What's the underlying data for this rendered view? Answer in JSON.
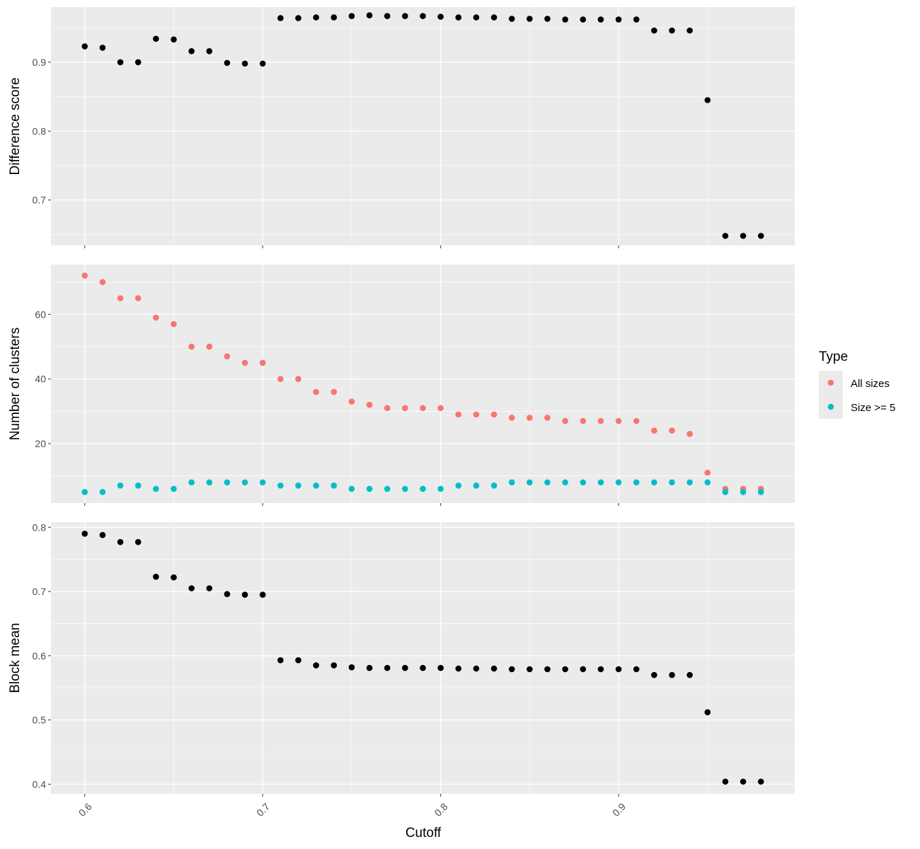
{
  "chart_data": {
    "type": "scatter",
    "x_axis": {
      "label": "Cutoff",
      "range": [
        0.581,
        0.999
      ],
      "ticks": [
        0.6,
        0.7,
        0.8,
        0.9
      ],
      "tick_labels": [
        "0.6",
        "0.7",
        "0.8",
        "0.9"
      ]
    },
    "x": [
      0.6,
      0.61,
      0.62,
      0.63,
      0.64,
      0.65,
      0.66,
      0.67,
      0.68,
      0.69,
      0.7,
      0.71,
      0.72,
      0.73,
      0.74,
      0.75,
      0.76,
      0.77,
      0.78,
      0.79,
      0.8,
      0.81,
      0.82,
      0.83,
      0.84,
      0.85,
      0.86,
      0.87,
      0.88,
      0.89,
      0.9,
      0.91,
      0.92,
      0.93,
      0.94,
      0.95,
      0.96,
      0.97,
      0.98
    ],
    "grid": true,
    "panels": [
      {
        "id": "difference-score",
        "ylabel": "Difference score",
        "ylim": [
          0.634,
          0.98
        ],
        "y_ticks": [
          0.7,
          0.8,
          0.9
        ],
        "y_tick_labels": [
          "0.7",
          "0.8",
          "0.9"
        ],
        "series": [
          {
            "color": "#000000",
            "values": [
              0.923,
              0.921,
              0.9,
              0.9,
              0.934,
              0.933,
              0.916,
              0.916,
              0.899,
              0.898,
              0.898,
              0.964,
              0.964,
              0.965,
              0.965,
              0.967,
              0.968,
              0.967,
              0.967,
              0.967,
              0.966,
              0.965,
              0.965,
              0.965,
              0.963,
              0.963,
              0.963,
              0.962,
              0.962,
              0.962,
              0.962,
              0.962,
              0.946,
              0.946,
              0.946,
              0.845,
              0.648,
              0.648,
              0.648
            ]
          }
        ]
      },
      {
        "id": "number-of-clusters",
        "ylabel": "Number of clusters",
        "ylim": [
          1.6,
          75.4
        ],
        "y_ticks": [
          20,
          40,
          60
        ],
        "y_tick_labels": [
          "20",
          "40",
          "60"
        ],
        "series": [
          {
            "name": "All sizes",
            "color": "#F8766D",
            "values": [
              72,
              70,
              65,
              65,
              59,
              57,
              50,
              50,
              47,
              45,
              45,
              40,
              40,
              36,
              36,
              33,
              32,
              31,
              31,
              31,
              31,
              29,
              29,
              29,
              28,
              28,
              28,
              27,
              27,
              27,
              27,
              27,
              24,
              24,
              23,
              11,
              6,
              6,
              6
            ]
          },
          {
            "name": "Size >= 5",
            "color": "#00BFC4",
            "values": [
              5,
              5,
              7,
              7,
              6,
              6,
              8,
              8,
              8,
              8,
              8,
              7,
              7,
              7,
              7,
              6,
              6,
              6,
              6,
              6,
              6,
              7,
              7,
              7,
              8,
              8,
              8,
              8,
              8,
              8,
              8,
              8,
              8,
              8,
              8,
              8,
              5,
              5,
              5
            ]
          }
        ]
      },
      {
        "id": "block-mean",
        "ylabel": "Block mean",
        "ylim": [
          0.385,
          0.808
        ],
        "y_ticks": [
          0.4,
          0.5,
          0.6,
          0.7,
          0.8
        ],
        "y_tick_labels": [
          "0.4",
          "0.5",
          "0.6",
          "0.7",
          "0.8"
        ],
        "series": [
          {
            "color": "#000000",
            "values": [
              0.79,
              0.788,
              0.777,
              0.777,
              0.723,
              0.722,
              0.705,
              0.705,
              0.696,
              0.695,
              0.695,
              0.593,
              0.593,
              0.585,
              0.585,
              0.582,
              0.581,
              0.581,
              0.581,
              0.581,
              0.581,
              0.58,
              0.58,
              0.58,
              0.579,
              0.579,
              0.579,
              0.579,
              0.579,
              0.579,
              0.579,
              0.579,
              0.57,
              0.57,
              0.57,
              0.512,
              0.404,
              0.404,
              0.404
            ]
          }
        ]
      }
    ],
    "legend": {
      "title": "Type",
      "placement": "right",
      "entries": [
        {
          "label": "All sizes",
          "color": "#F8766D"
        },
        {
          "label": "Size >= 5",
          "color": "#00BFC4"
        }
      ]
    }
  }
}
